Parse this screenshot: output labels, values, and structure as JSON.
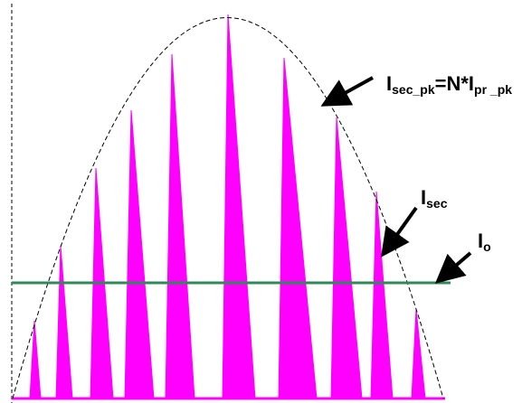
{
  "labels": {
    "peak_main": "I",
    "peak_sub": "sec_pk",
    "peak_mid": "=N*I",
    "peak_sub2": "pr _pk",
    "isec_main": "I",
    "isec_sub": "sec",
    "io_main": "I",
    "io_sub": "o"
  },
  "colors": {
    "pulse": "#ff00ff",
    "output_line": "#2e8b57",
    "envelope": "#000000",
    "arrow": "#000000"
  }
}
